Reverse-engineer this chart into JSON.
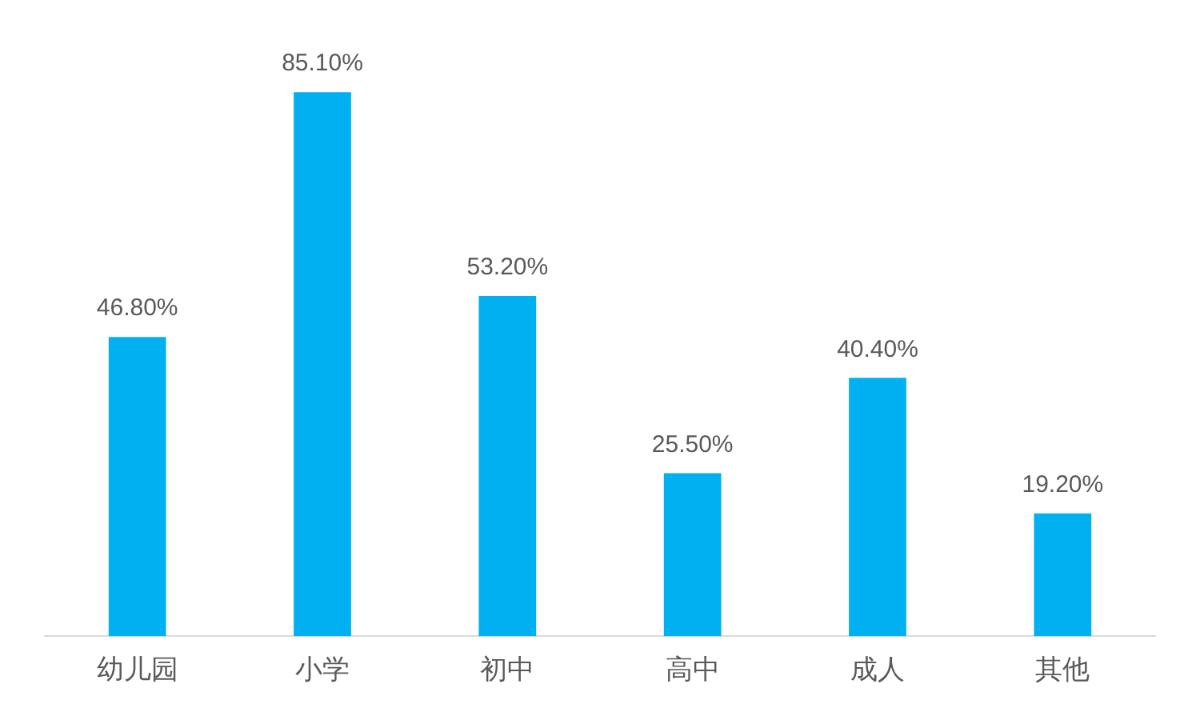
{
  "chart_data": {
    "type": "bar",
    "categories": [
      "幼儿园",
      "小学",
      "初中",
      "高中",
      "成人",
      "其他"
    ],
    "values": [
      46.8,
      85.1,
      53.2,
      25.5,
      40.4,
      19.2
    ],
    "color": "#00b0f0",
    "value_labels": [
      "46.80%",
      "85.10%",
      "53.20%",
      "25.50%",
      "40.40%",
      "19.20%"
    ],
    "grid": false,
    "legend": false
  }
}
